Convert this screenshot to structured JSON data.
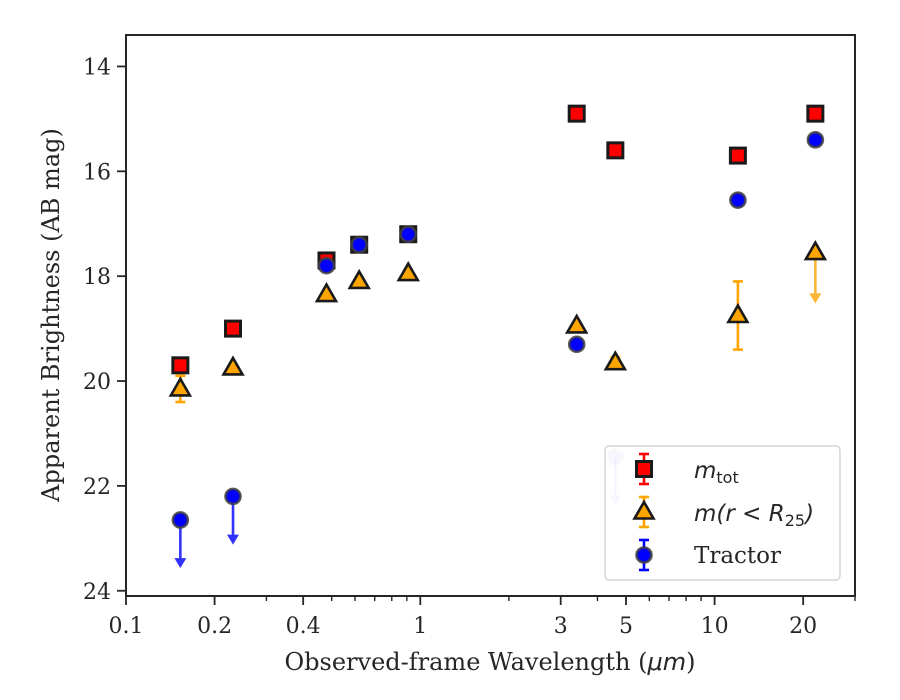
{
  "chart_data": {
    "type": "scatter",
    "xlabel_prefix": "Observed-frame Wavelength (",
    "xlabel_unit": "μm",
    "xlabel_suffix": ")",
    "ylabel": "Apparent Brightness (AB mag)",
    "xscale": "log",
    "xlim": [
      0.1,
      30
    ],
    "ylim": [
      24.1,
      13.4
    ],
    "y_inverted": true,
    "xticks": [
      {
        "value": 0.1,
        "label": "0.1"
      },
      {
        "value": 0.2,
        "label": "0.2"
      },
      {
        "value": 0.4,
        "label": "0.4"
      },
      {
        "value": 1,
        "label": "1"
      },
      {
        "value": 3,
        "label": "3"
      },
      {
        "value": 5,
        "label": "5"
      },
      {
        "value": 10,
        "label": "10"
      },
      {
        "value": 20,
        "label": "20"
      }
    ],
    "yticks": [
      {
        "value": 14,
        "label": "14"
      },
      {
        "value": 16,
        "label": "16"
      },
      {
        "value": 18,
        "label": "18"
      },
      {
        "value": 20,
        "label": "20"
      },
      {
        "value": 22,
        "label": "22"
      },
      {
        "value": 24,
        "label": "24"
      }
    ],
    "legend_position": "lower-right",
    "series": [
      {
        "key": "mtot",
        "legend_main": "m",
        "legend_sub": "tot",
        "marker": "square",
        "color": "#ff0000",
        "edge": "#1a1a1a",
        "points": [
          {
            "x": 0.153,
            "y": 19.7,
            "err": 0.05
          },
          {
            "x": 0.231,
            "y": 19.0,
            "err": 0.05
          },
          {
            "x": 0.48,
            "y": 17.7,
            "err": 0.05
          },
          {
            "x": 0.62,
            "y": 17.4,
            "err": 0.05
          },
          {
            "x": 0.91,
            "y": 17.2,
            "err": 0.05
          },
          {
            "x": 3.4,
            "y": 14.9,
            "err": 0.05
          },
          {
            "x": 4.6,
            "y": 15.6,
            "err": 0.05
          },
          {
            "x": 12.0,
            "y": 15.7,
            "err": 0.05
          },
          {
            "x": 22.0,
            "y": 14.9,
            "err": 0.05
          }
        ]
      },
      {
        "key": "mr25",
        "legend_main": "m(r < R",
        "legend_sub": "25",
        "legend_tail": ")",
        "marker": "triangle",
        "color": "#ffa500",
        "edge": "#1a1a1a",
        "points": [
          {
            "x": 0.153,
            "y": 20.15,
            "err": 0.25
          },
          {
            "x": 0.231,
            "y": 19.75,
            "err": 0.05
          },
          {
            "x": 0.48,
            "y": 18.35,
            "err": 0.05
          },
          {
            "x": 0.62,
            "y": 18.1,
            "err": 0.05
          },
          {
            "x": 0.91,
            "y": 17.95,
            "err": 0.05
          },
          {
            "x": 3.4,
            "y": 18.95,
            "err": 0.05
          },
          {
            "x": 4.6,
            "y": 19.65,
            "err": 0.1
          },
          {
            "x": 12.0,
            "y": 18.75,
            "err": 0.65
          },
          {
            "x": 22.0,
            "y": 17.55,
            "err": 0.05,
            "upper_limit_to": 18.5
          }
        ]
      },
      {
        "key": "tractor",
        "legend_label": "Tractor",
        "marker": "circle",
        "color": "#0000ff",
        "edge": "#404040",
        "points": [
          {
            "x": 0.153,
            "y": 22.65,
            "err": 0.05,
            "upper_limit_to": 23.55
          },
          {
            "x": 0.231,
            "y": 22.2,
            "err": 0.05,
            "upper_limit_to": 23.1
          },
          {
            "x": 0.48,
            "y": 17.8,
            "err": 0.05
          },
          {
            "x": 0.62,
            "y": 17.4,
            "err": 0.05
          },
          {
            "x": 0.91,
            "y": 17.2,
            "err": 0.05
          },
          {
            "x": 3.4,
            "y": 19.3,
            "err": 0.05
          },
          {
            "x": 4.6,
            "y": 21.45,
            "err": 0.05,
            "upper_limit_to": 22.35,
            "faded": true
          },
          {
            "x": 12.0,
            "y": 16.55,
            "err": 0.05
          },
          {
            "x": 22.0,
            "y": 15.4,
            "err": 0.05
          }
        ]
      }
    ]
  }
}
